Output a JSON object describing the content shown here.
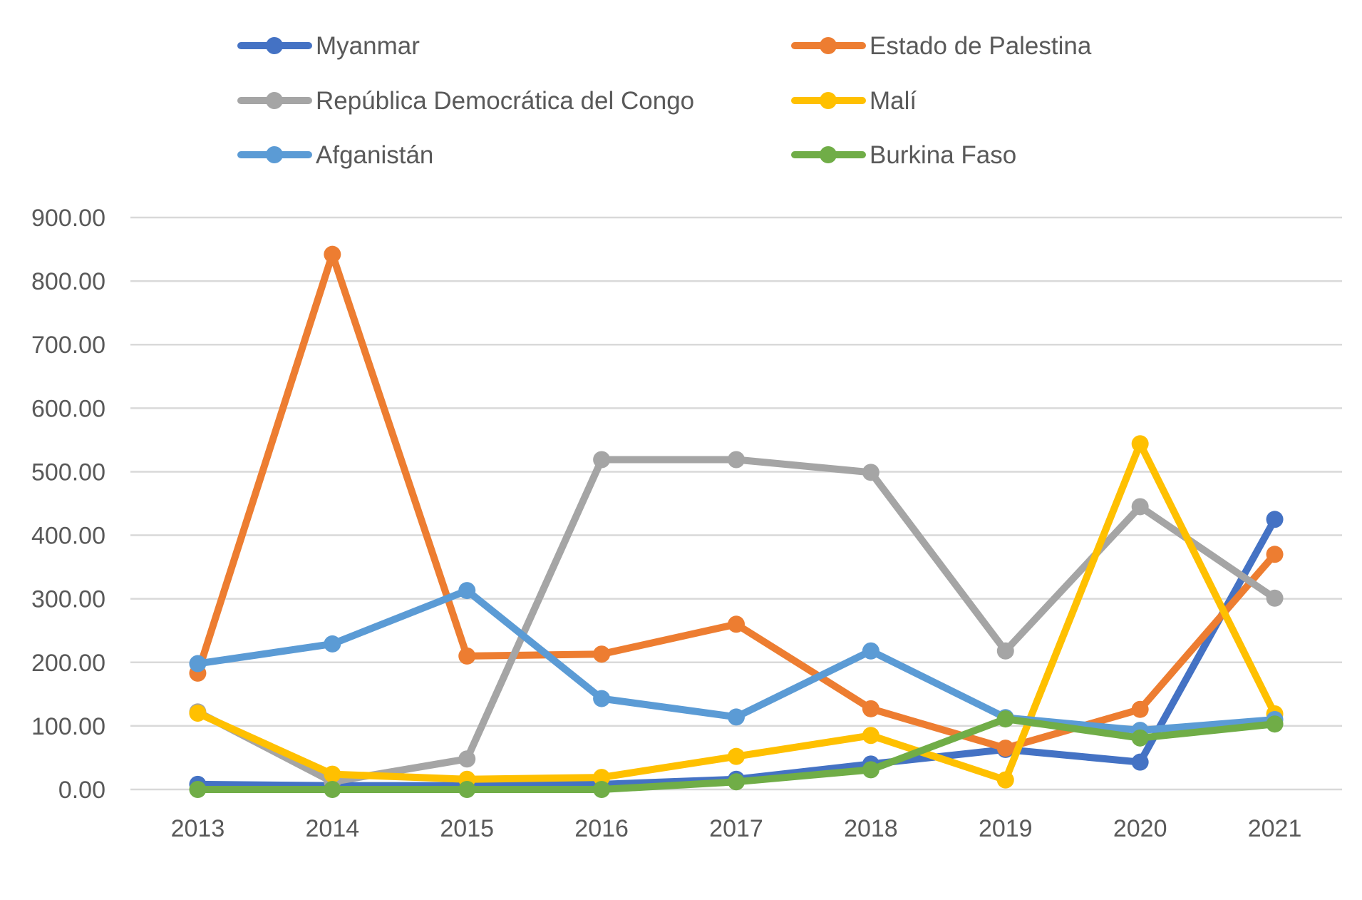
{
  "colors": {
    "Myanmar": "#4472C4",
    "Estado de Palestina": "#ED7D31",
    "República Democrática del Congo": "#A5A5A5",
    "Malí": "#FFC000",
    "Afganistán": "#5B9BD5",
    "Burkina Faso": "#70AD47",
    "gridline": "#D9D9D9",
    "text": "#595959"
  },
  "chart_data": {
    "type": "line",
    "title": "",
    "xlabel": "",
    "ylabel": "",
    "categories": [
      "2013",
      "2014",
      "2015",
      "2016",
      "2017",
      "2018",
      "2019",
      "2020",
      "2021"
    ],
    "y_ticks": [
      "0.00",
      "100.00",
      "200.00",
      "300.00",
      "400.00",
      "500.00",
      "600.00",
      "700.00",
      "800.00",
      "900.00"
    ],
    "ylim": [
      0,
      900
    ],
    "grid": true,
    "legend_position": "top",
    "series": [
      {
        "name": "Myanmar",
        "values": [
          8,
          6,
          6,
          8,
          16,
          40,
          63,
          43,
          425
        ]
      },
      {
        "name": "Estado de Palestina",
        "values": [
          183,
          842,
          210,
          213,
          260,
          127,
          65,
          126,
          370
        ]
      },
      {
        "name": "República Democrática del Congo",
        "values": [
          122,
          12,
          48,
          519,
          519,
          499,
          218,
          445,
          301
        ]
      },
      {
        "name": "Malí",
        "values": [
          120,
          24,
          16,
          19,
          52,
          85,
          15,
          544,
          119
        ]
      },
      {
        "name": "Afganistán",
        "values": [
          198,
          229,
          313,
          143,
          114,
          218,
          113,
          93,
          110
        ]
      },
      {
        "name": "Burkina Faso",
        "values": [
          0,
          0,
          0,
          0,
          12,
          31,
          111,
          81,
          103
        ]
      }
    ]
  }
}
